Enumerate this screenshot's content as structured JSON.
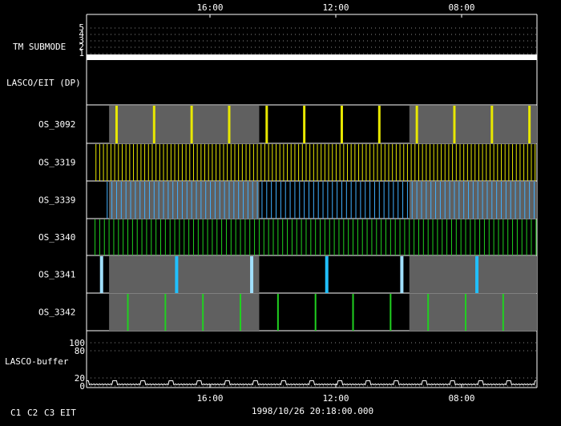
{
  "chart_data": {
    "type": "timeline",
    "top_time_labels": [
      "16:00",
      "12:00",
      "08:00"
    ],
    "bottom_time_labels": [
      "16:00",
      "12:00",
      "08:00"
    ],
    "footer_timestamp": "1998/10/26 20:18:00.000",
    "legend": [
      {
        "label": "C1",
        "color": "#ff3030"
      },
      {
        "label": "C2",
        "color": "#30ff30"
      },
      {
        "label": "C3",
        "color": "#ffffff"
      },
      {
        "label": "EIT",
        "color": "#ffffff"
      }
    ],
    "tm_submode": {
      "label": "TM SUBMODE",
      "ticks": [
        "5",
        "4",
        "3",
        "2",
        "1"
      ],
      "value": 1
    },
    "lasco_eit_dp": {
      "label": "LASCO/EIT (DP)"
    },
    "gray_periods_hours": [
      [
        1.2,
        9.2
      ],
      [
        17.2,
        25.5
      ]
    ],
    "rows": [
      {
        "name": "OS_3092",
        "shaded": true,
        "gray_bg": true,
        "color": "#e8e800",
        "width": 3,
        "events": [
          1.6,
          3.6,
          5.6,
          7.6,
          9.6,
          11.6,
          13.6,
          15.6,
          17.6,
          19.6,
          21.6,
          23.6
        ]
      },
      {
        "name": "OS_3319",
        "shaded": false,
        "gray_bg": false,
        "color": "#e8e800",
        "width": 1,
        "period": 0.2,
        "start": 0.5
      },
      {
        "name": "OS_3339",
        "shaded": true,
        "gray_bg": true,
        "color": "#40b0ff",
        "width": 1,
        "period": 0.25,
        "start": 1.1
      },
      {
        "name": "OS_3340",
        "shaded": false,
        "gray_bg": false,
        "color": "#20d020",
        "width": 1,
        "period": 0.25,
        "start": 0.45
      },
      {
        "name": "OS_3341",
        "shaded": true,
        "gray_bg": true,
        "color": "#20c0ff",
        "width": 4,
        "events": [
          0.8,
          4.8,
          8.8,
          12.8,
          16.8,
          20.8
        ],
        "alt_color": "#a0e0ff"
      },
      {
        "name": "OS_3342",
        "shaded": true,
        "gray_bg": true,
        "color": "#20d020",
        "width": 2,
        "events": [
          2.2,
          4.2,
          6.2,
          8.2,
          10.2,
          12.2,
          14.2,
          16.2,
          18.2,
          20.2,
          22.2
        ]
      }
    ],
    "lasco_buffer": {
      "label": "LASCO-buffer",
      "ticks": [
        "100",
        "80",
        "20",
        "0"
      ],
      "baseline_value": 3,
      "spike_value": 13
    },
    "time_span_hours": 24
  }
}
